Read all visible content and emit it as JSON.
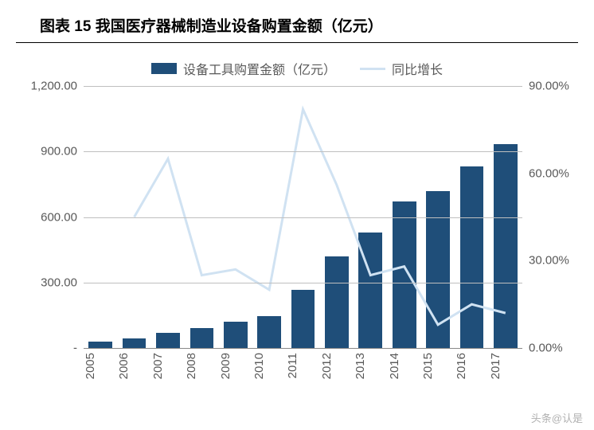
{
  "title": "图表 15 我国医疗器械制造业设备购置金额（亿元）",
  "title_fontsize": 19,
  "legend": {
    "bar_label": "设备工具购置金额（亿元）",
    "line_label": "同比增长",
    "fontsize": 16
  },
  "chart": {
    "type": "bar-line-combo",
    "categories": [
      "2005",
      "2006",
      "2007",
      "2008",
      "2009",
      "2010",
      "2011",
      "2012",
      "2013",
      "2014",
      "2015",
      "2016",
      "2017"
    ],
    "bar_values": [
      30,
      45,
      70,
      90,
      120,
      145,
      265,
      420,
      530,
      670,
      720,
      830,
      935
    ],
    "line_values": [
      null,
      45,
      65,
      25,
      27,
      20,
      82,
      56,
      25,
      28,
      8,
      15,
      12
    ],
    "bar_color": "#1f4e79",
    "line_color": "#d0e2f2",
    "line_width": 3,
    "grid_color": "#bfbfbf",
    "y_left": {
      "min": 0,
      "max": 1200,
      "ticks": [
        "-",
        "300.00",
        "600.00",
        "900.00",
        "1,200.00"
      ]
    },
    "y_right": {
      "min": 0,
      "max": 90,
      "ticks": [
        "0.00%",
        "30.00%",
        "60.00%",
        "90.00%"
      ]
    },
    "axis_label_color": "#595959",
    "axis_label_fontsize": 15,
    "x_label_fontsize": 15,
    "background": "#ffffff",
    "bar_width_ratio": 0.7
  },
  "watermark": "头条@认是"
}
